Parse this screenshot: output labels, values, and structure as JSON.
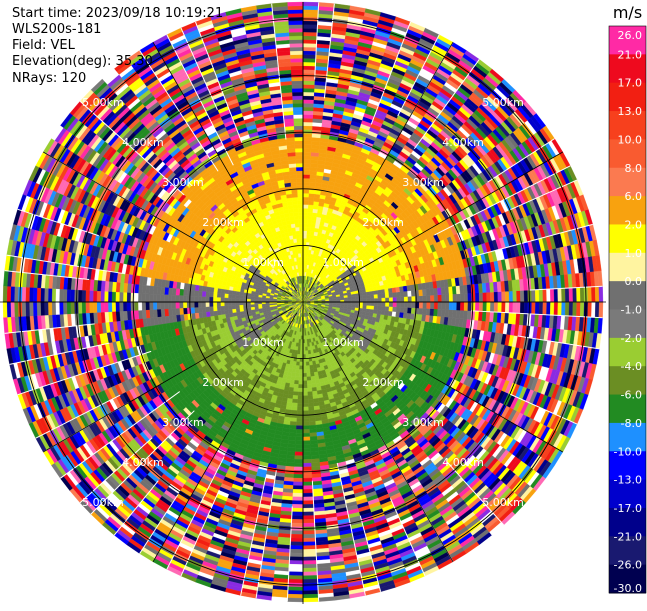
{
  "header": {
    "start_time": "Start time: 2023/09/18 10:19:21",
    "instrument": "WLS200s-181",
    "field": "Field: VEL",
    "elevation": "Elevation(deg): 35.30",
    "nrays": "NRays: 120"
  },
  "colorbar": {
    "unit": "m/s",
    "ticks": [
      "26.0",
      "21.0",
      "17.0",
      "13.0",
      "10.0",
      "8.0",
      "6.0",
      "2.0",
      "1.0",
      "0.0",
      "-1.0",
      "-2.0",
      "-4.0",
      "-6.0",
      "-8.0",
      "-10.0",
      "-13.0",
      "-17.0",
      "-21.0",
      "-26.0",
      "-30.0"
    ],
    "colors": [
      "#ff2aa5",
      "#ee0a1e",
      "#f21f12",
      "#f7401d",
      "#f95b30",
      "#fb7a50",
      "#f8a20f",
      "#ffff00",
      "#fff4a0",
      "#707070",
      "#7a7a7a",
      "#9acd32",
      "#6b8e23",
      "#228b22",
      "#1e90ff",
      "#0000ff",
      "#0000cd",
      "#00008b",
      "#191970",
      "#000050"
    ]
  },
  "chart_data": {
    "type": "heatmap",
    "title": "",
    "field": "VEL",
    "units": "m/s",
    "nrays": 120,
    "elevation_deg": 35.3,
    "range_rings_km": [
      1.0,
      2.0,
      3.0,
      4.0,
      5.0
    ],
    "ring_labels": [
      "1.00km",
      "2.00km",
      "3.00km",
      "4.00km",
      "5.00km"
    ],
    "max_range_km": 5.3,
    "spokes_deg": [
      0,
      30,
      60,
      90,
      120,
      150,
      180,
      210,
      240,
      270,
      300,
      330
    ],
    "value_range": [
      -30.0,
      26.0
    ],
    "pattern_summary": {
      "near_core_km": [
        0.0,
        0.5
      ],
      "yellow_positive_sector_km": [
        0.5,
        2.2
      ],
      "orange_positive_outer_km": [
        1.6,
        2.9
      ],
      "grey_zero_band_km": [
        0.4,
        1.6
      ],
      "green_negative_sector_km": [
        0.5,
        3.1
      ],
      "noise_beyond_km": 2.9
    }
  }
}
